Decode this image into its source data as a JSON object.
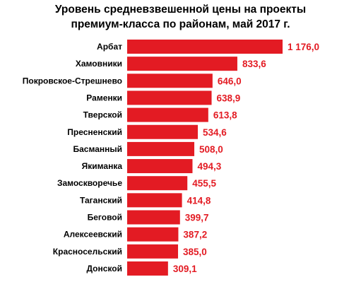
{
  "chart_data": {
    "type": "bar",
    "orientation": "horizontal",
    "title_lines": [
      "Уровень средневзвешенной цены на проекты",
      "премиум-класса по районам, май 2017 г."
    ],
    "categories": [
      "Арбат",
      "Хамовники",
      "Покровское-Стрешнево",
      "Раменки",
      "Тверской",
      "Пресненский",
      "Басманный",
      "Якиманка",
      "Замоскворечье",
      "Таганский",
      "Беговой",
      "Алексеевский",
      "Красносельский",
      "Донской"
    ],
    "values": [
      1176.0,
      833.6,
      646.0,
      638.9,
      613.8,
      534.6,
      508.0,
      494.3,
      455.5,
      414.8,
      399.7,
      387.2,
      385.0,
      309.1
    ],
    "value_labels": [
      "1 176,0",
      "833,6",
      "646,0",
      "638,9",
      "613,8",
      "534,6",
      "508,0",
      "494,3",
      "455,5",
      "414,8",
      "399,7",
      "387,2",
      "385,0",
      "309,1"
    ],
    "bar_color": "#e31b23",
    "label_color": "#e31b23",
    "grid": false,
    "legend": "none"
  }
}
